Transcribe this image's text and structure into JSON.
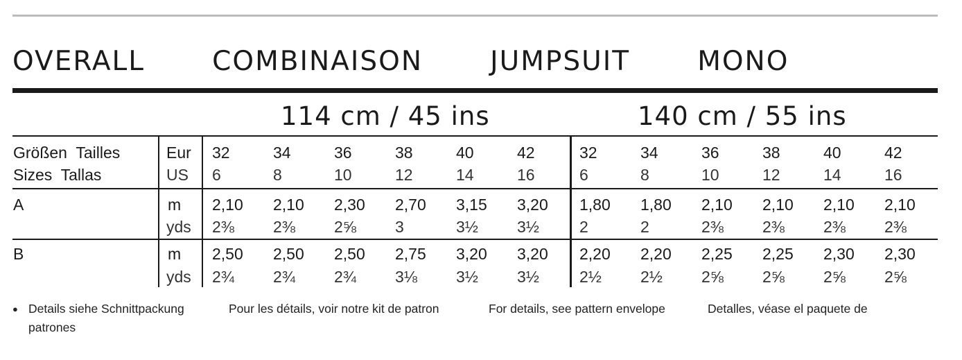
{
  "title": "OVERALL   COMBINAISON   JUMPSUIT   MONO",
  "widths": [
    "114 cm / 45 ins",
    "140 cm / 55 ins"
  ],
  "size_label": {
    "line1": "Größen  Tailles",
    "line2": "Sizes  Tallas"
  },
  "size_units": {
    "eur": "Eur",
    "us": "US"
  },
  "sizes_eur": [
    "32",
    "34",
    "36",
    "38",
    "40",
    "42"
  ],
  "sizes_us": [
    "6",
    "8",
    "10",
    "12",
    "14",
    "16"
  ],
  "rows": [
    {
      "label": "A",
      "unit_m": "m",
      "unit_yds": "yds",
      "m": [
        [
          "2,10",
          "2,10",
          "2,30",
          "2,70",
          "3,15",
          "3,20"
        ],
        [
          "1,80",
          "1,80",
          "2,10",
          "2,10",
          "2,10",
          "2,10"
        ]
      ],
      "yds": [
        [
          "2⅜",
          "2⅜",
          "2⅝",
          "3",
          "3½",
          "3½"
        ],
        [
          "2",
          "2",
          "2⅜",
          "2⅜",
          "2⅜",
          "2⅜"
        ]
      ]
    },
    {
      "label": "B",
      "unit_m": "m",
      "unit_yds": "yds",
      "m": [
        [
          "2,50",
          "2,50",
          "2,50",
          "2,75",
          "3,20",
          "3,20"
        ],
        [
          "2,20",
          "2,20",
          "2,25",
          "2,25",
          "2,30",
          "2,30"
        ]
      ],
      "yds": [
        [
          "2¾",
          "2¾",
          "2¾",
          "3⅛",
          "3½",
          "3½"
        ],
        [
          "2½",
          "2½",
          "2⅝",
          "2⅝",
          "2⅝",
          "2⅝"
        ]
      ]
    }
  ],
  "footer": {
    "bullet": "●",
    "de": "Details siehe Schnittpackung",
    "fr": "Pour les détails, voir notre kit de patron",
    "en": "For details, see pattern envelope",
    "es": "Detalles, véase el paquete de",
    "es_cont": "patrones"
  }
}
